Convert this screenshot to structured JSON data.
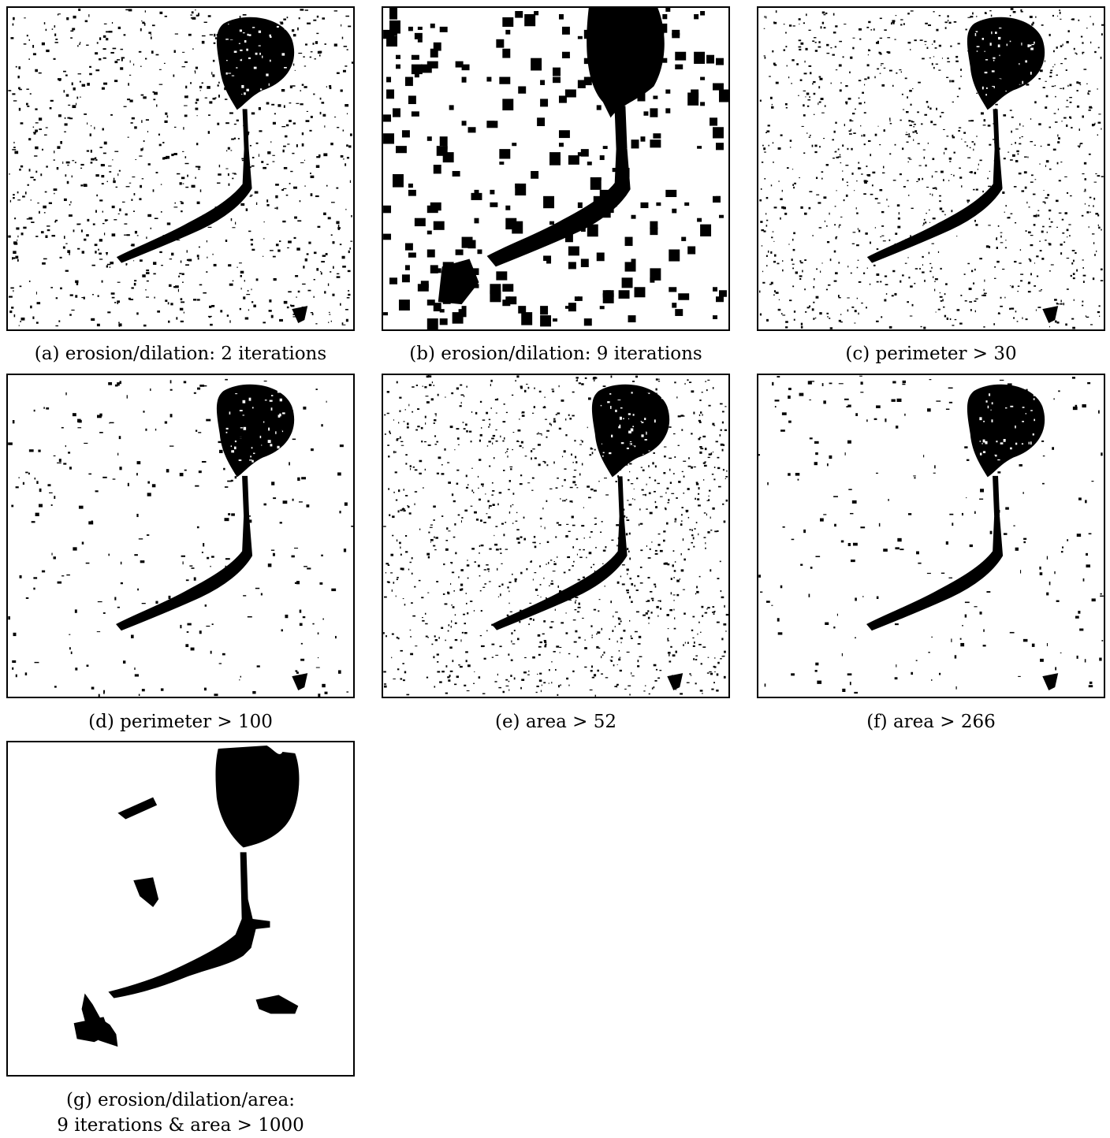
{
  "figure": {
    "panels": [
      {
        "id": "a",
        "caption": "(a) erosion/dilation: 2 iterations",
        "style": "fine-noise"
      },
      {
        "id": "b",
        "caption": "(b) erosion/dilation: 9 iterations",
        "style": "coarse-blocks"
      },
      {
        "id": "c",
        "caption": "(c) perimeter > 30",
        "style": "fine-noise"
      },
      {
        "id": "d",
        "caption": "(d) perimeter > 100",
        "style": "sparse"
      },
      {
        "id": "e",
        "caption": "(e) area > 52",
        "style": "fine-noise"
      },
      {
        "id": "f",
        "caption": "(f) area > 266",
        "style": "sparse"
      },
      {
        "id": "g",
        "caption_line1": "(g) erosion/dilation/area:",
        "caption_line2": "9 iterations & area > 1000",
        "style": "blobs"
      }
    ]
  }
}
